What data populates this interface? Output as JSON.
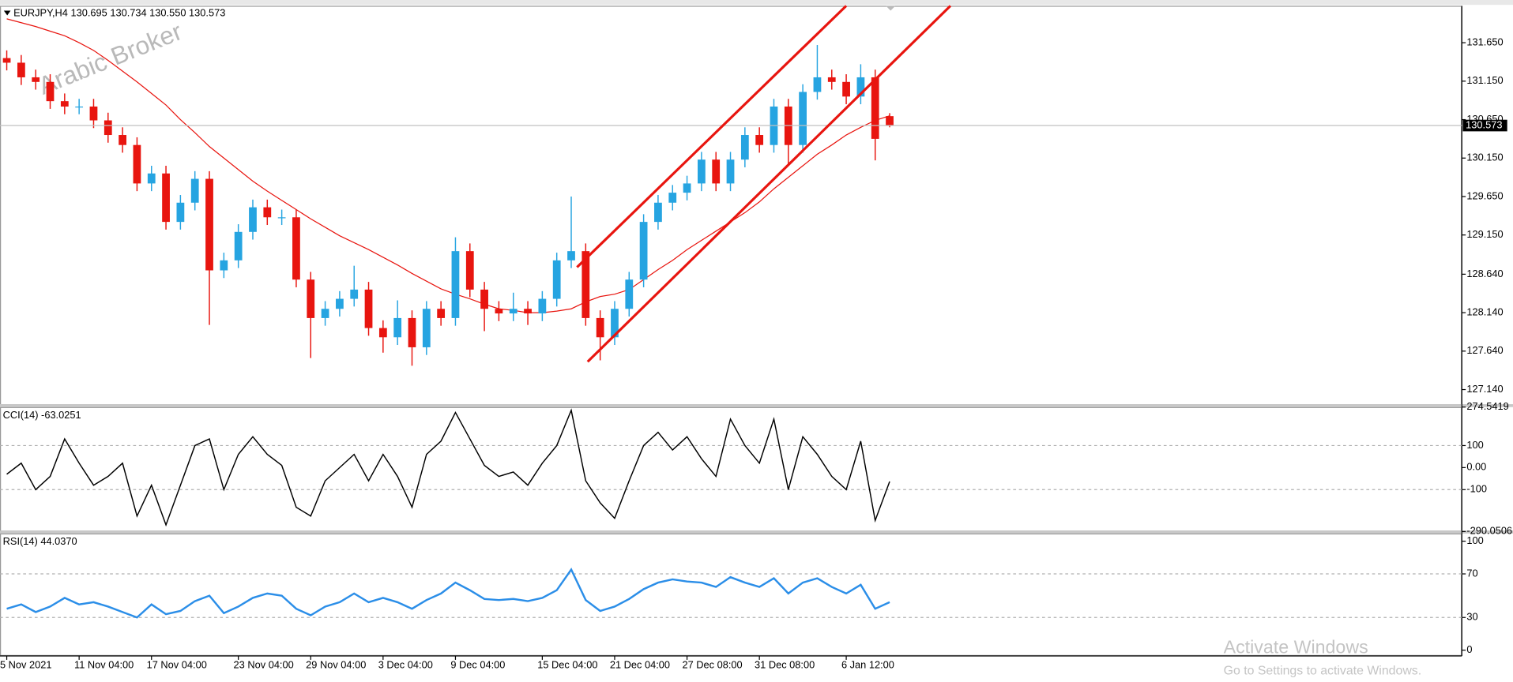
{
  "chart_data": [
    {
      "type": "candlestick",
      "title": "EURJPY,H4  130.695 130.734 130.550 130.573",
      "categories": [
        "5 Nov 2021",
        null,
        null,
        null,
        null,
        "11 Nov 04:00",
        null,
        null,
        null,
        null,
        "17 Nov 04:00",
        null,
        null,
        null,
        null,
        null,
        "23 Nov 04:00",
        null,
        null,
        null,
        null,
        "29 Nov 04:00",
        null,
        null,
        null,
        null,
        "3 Dec 04:00",
        null,
        null,
        null,
        null,
        "9 Dec 04:00",
        null,
        null,
        null,
        null,
        null,
        "15 Dec 04:00",
        null,
        null,
        null,
        null,
        "21 Dec 04:00",
        null,
        null,
        null,
        null,
        "27 Dec 08:00",
        null,
        null,
        null,
        null,
        "31 Dec 08:00",
        null,
        null,
        null,
        null,
        null,
        "6 Jan 12:00",
        null,
        null,
        null
      ],
      "open": [
        131.45,
        131.39,
        131.2,
        131.14,
        130.89,
        130.82,
        130.82,
        130.64,
        130.45,
        130.32,
        129.82,
        129.95,
        129.32,
        129.57,
        129.88,
        128.69,
        128.82,
        129.19,
        129.51,
        129.38,
        129.38,
        128.57,
        128.07,
        128.19,
        128.32,
        128.44,
        127.94,
        127.82,
        128.07,
        127.69,
        128.19,
        128.07,
        128.94,
        128.44,
        128.19,
        128.13,
        128.19,
        128.13,
        128.32,
        128.82,
        128.94,
        128.07,
        127.82,
        128.19,
        128.57,
        129.32,
        129.57,
        129.7,
        129.82,
        130.13,
        129.82,
        130.13,
        130.45,
        130.32,
        130.82,
        130.32,
        131.01,
        131.2,
        131.14,
        130.95,
        131.2,
        130.695
      ],
      "high": [
        131.55,
        131.49,
        131.3,
        131.24,
        130.99,
        130.92,
        130.92,
        130.74,
        130.55,
        130.42,
        130.05,
        130.05,
        129.67,
        129.98,
        129.98,
        128.92,
        129.29,
        129.61,
        129.61,
        129.48,
        129.48,
        128.67,
        128.29,
        128.42,
        128.75,
        128.54,
        128.04,
        128.3,
        128.17,
        128.29,
        128.29,
        129.12,
        129.04,
        128.54,
        128.29,
        128.4,
        128.29,
        128.42,
        128.92,
        129.65,
        129.04,
        128.17,
        128.29,
        128.67,
        129.42,
        129.67,
        129.8,
        129.92,
        130.23,
        130.23,
        130.23,
        130.55,
        130.55,
        130.92,
        130.92,
        131.11,
        131.62,
        131.3,
        131.24,
        131.37,
        131.3,
        130.734
      ],
      "low": [
        131.29,
        131.1,
        131.04,
        130.79,
        130.72,
        130.72,
        130.54,
        130.35,
        130.22,
        129.72,
        129.72,
        129.22,
        129.22,
        129.47,
        127.98,
        128.59,
        128.72,
        129.09,
        129.28,
        129.28,
        128.47,
        127.55,
        127.97,
        128.09,
        128.22,
        127.84,
        127.62,
        127.72,
        127.45,
        127.59,
        127.97,
        127.97,
        128.34,
        127.9,
        128.03,
        128.03,
        127.98,
        128.03,
        128.22,
        128.72,
        127.97,
        127.52,
        127.72,
        128.09,
        128.47,
        129.22,
        129.47,
        129.6,
        129.72,
        129.72,
        129.72,
        130.03,
        130.22,
        130.22,
        130.05,
        130.22,
        130.91,
        131.04,
        130.85,
        130.85,
        130.12,
        130.55
      ],
      "close": [
        131.39,
        131.2,
        131.14,
        130.89,
        130.82,
        130.82,
        130.64,
        130.45,
        130.32,
        129.82,
        129.95,
        129.32,
        129.57,
        129.88,
        128.69,
        128.82,
        129.19,
        129.51,
        129.38,
        129.38,
        128.57,
        128.07,
        128.19,
        128.32,
        128.44,
        127.94,
        127.82,
        128.07,
        127.69,
        128.19,
        128.07,
        128.94,
        128.44,
        128.19,
        128.13,
        128.19,
        128.13,
        128.32,
        128.82,
        128.94,
        128.07,
        127.82,
        128.19,
        128.57,
        129.32,
        129.57,
        129.7,
        129.82,
        130.13,
        129.82,
        130.13,
        130.45,
        130.32,
        130.82,
        130.32,
        131.01,
        131.2,
        131.14,
        130.95,
        131.2,
        130.4,
        130.573
      ],
      "up_color": "#26a4e1",
      "down_color": "#e8150f",
      "ma": [
        131.96,
        131.91,
        131.86,
        131.8,
        131.74,
        131.65,
        131.55,
        131.42,
        131.28,
        131.14,
        130.99,
        130.84,
        130.65,
        130.48,
        130.3,
        130.15,
        130.0,
        129.85,
        129.72,
        129.6,
        129.48,
        129.36,
        129.25,
        129.14,
        129.05,
        128.96,
        128.86,
        128.76,
        128.65,
        128.55,
        128.45,
        128.38,
        128.32,
        128.25,
        128.19,
        128.17,
        128.14,
        128.14,
        128.16,
        128.19,
        128.28,
        128.35,
        128.38,
        128.44,
        128.57,
        128.7,
        128.82,
        128.96,
        129.08,
        129.2,
        129.32,
        129.44,
        129.58,
        129.75,
        129.9,
        130.05,
        130.2,
        130.32,
        130.45,
        130.55,
        130.64,
        130.7
      ],
      "ma_color": "#e8150f",
      "ylim": [
        126.95,
        132.13
      ],
      "yticks": [
        {
          "value": 131.65,
          "label": "131.650"
        },
        {
          "value": 131.15,
          "label": "131.150"
        },
        {
          "value": 130.65,
          "label": "130.650"
        },
        {
          "value": 130.15,
          "label": "130.150"
        },
        {
          "value": 129.65,
          "label": "129.650"
        },
        {
          "value": 129.15,
          "label": "129.150"
        },
        {
          "value": 128.64,
          "label": "128.640"
        },
        {
          "value": 128.14,
          "label": "128.140"
        },
        {
          "value": 127.64,
          "label": "127.640"
        },
        {
          "value": 127.14,
          "label": "127.140"
        }
      ],
      "last_price_line": true
    },
    {
      "type": "line",
      "title": "CCI(14) -63.0251",
      "values": [
        -30,
        20,
        -100,
        -40,
        130,
        20,
        -80,
        -40,
        20,
        -220,
        -80,
        -260,
        -80,
        100,
        130,
        -100,
        60,
        140,
        60,
        10,
        -180,
        -220,
        -60,
        0,
        60,
        -60,
        60,
        -40,
        -180,
        60,
        120,
        250,
        130,
        10,
        -40,
        -20,
        -80,
        20,
        100,
        260,
        -60,
        -160,
        -230,
        -60,
        100,
        160,
        80,
        140,
        40,
        -40,
        220,
        100,
        20,
        220,
        -100,
        140,
        60,
        -40,
        -100,
        120,
        -240,
        -63.0251
      ],
      "color": "#000000",
      "ylim": [
        -290.0506,
        274.5419
      ],
      "yticks": [
        274.5419,
        100,
        {
          "value": 0,
          "label": "0.00"
        },
        -100,
        -290.0506
      ],
      "levels": [
        100,
        -100
      ]
    },
    {
      "type": "line",
      "title": "RSI(14) 44.0370",
      "values": [
        38,
        42,
        35,
        40,
        48,
        42,
        44,
        40,
        35,
        30,
        42,
        33,
        36,
        45,
        50,
        34,
        40,
        48,
        52,
        50,
        38,
        32,
        40,
        44,
        52,
        44,
        48,
        44,
        38,
        46,
        52,
        62,
        55,
        47,
        46,
        47,
        45,
        48,
        55,
        74,
        46,
        36,
        40,
        47,
        56,
        62,
        65,
        63,
        62,
        58,
        67,
        62,
        58,
        66,
        52,
        62,
        66,
        58,
        52,
        60,
        38,
        44.037
      ],
      "color": "#2b8ee8",
      "ylim": [
        -5.3,
        107.1
      ],
      "yticks": [
        100,
        70,
        30,
        0
      ],
      "levels": [
        70,
        30
      ]
    }
  ],
  "overlay": {
    "watermark": "Arabic Broker",
    "activate": "Activate Windows",
    "activate_hint": "Go to Settings to activate Windows."
  }
}
